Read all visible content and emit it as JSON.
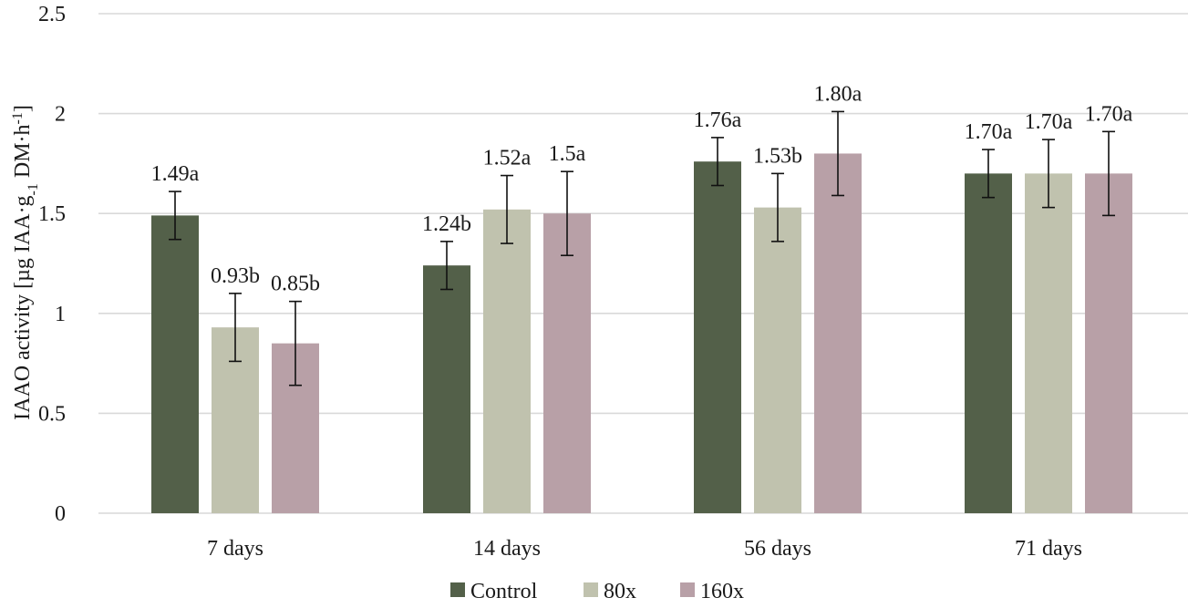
{
  "chart_data": {
    "type": "bar",
    "title": "",
    "xlabel": "",
    "ylabel": {
      "prefix": "IAAO activity [µg IAA·g",
      "sub": "-1",
      "middle": " DM·h",
      "sup": "-1",
      "suffix": "]"
    },
    "ylim": [
      0,
      2.5
    ],
    "yticks": [
      "0",
      "0.5",
      "1",
      "1.5",
      "2",
      "2.5"
    ],
    "ytick_values": [
      0,
      0.5,
      1,
      1.5,
      2,
      2.5
    ],
    "grid": true,
    "legend_position": "bottom-center",
    "categories": [
      "7 days",
      "14 days",
      "56 days",
      "71 days"
    ],
    "series": [
      {
        "name": "Control",
        "color": "#536049",
        "values": [
          1.49,
          1.24,
          1.76,
          1.7
        ],
        "errors": [
          0.12,
          0.12,
          0.12,
          0.12
        ],
        "labels": [
          "1.49a",
          "1.24b",
          "1.76a",
          "1.70a"
        ]
      },
      {
        "name": "80x",
        "color": "#c0c2ae",
        "values": [
          0.93,
          1.52,
          1.53,
          1.7
        ],
        "errors": [
          0.17,
          0.17,
          0.17,
          0.17
        ],
        "labels": [
          "0.93b",
          "1.52a",
          "1.53b",
          "1.70a"
        ]
      },
      {
        "name": "160x",
        "color": "#b8a0a7",
        "values": [
          0.85,
          1.5,
          1.8,
          1.7
        ],
        "errors": [
          0.21,
          0.21,
          0.21,
          0.21
        ],
        "labels": [
          "0.85b",
          "1.5a",
          "1.80a",
          "1.70a"
        ]
      }
    ]
  }
}
